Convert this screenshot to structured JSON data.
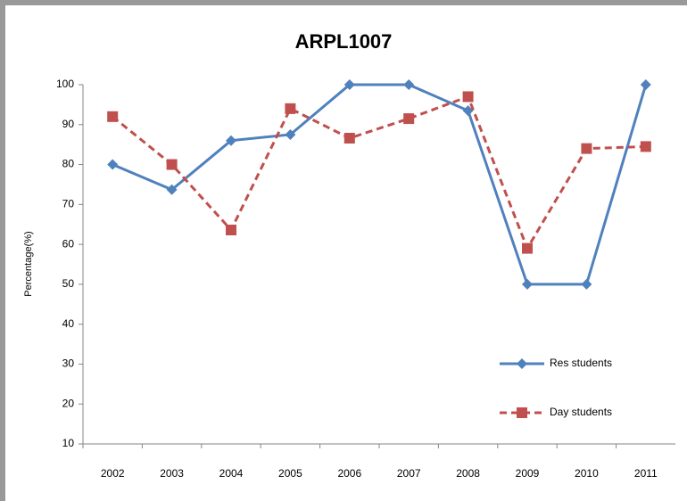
{
  "chart_data": {
    "type": "line",
    "title": "ARPL1007",
    "y_label": "Percentage(%)",
    "categories": [
      "2002",
      "2003",
      "2004",
      "2005",
      "2006",
      "2007",
      "2008",
      "2009",
      "2010",
      "2011"
    ],
    "series": [
      {
        "name": "Res students",
        "color": "#4f81bd",
        "marker": "diamond",
        "dashed": false,
        "values": [
          80,
          73.7,
          86,
          87.5,
          100,
          100,
          93.5,
          50,
          50,
          100
        ]
      },
      {
        "name": "Day students",
        "color": "#c0504d",
        "marker": "square",
        "dashed": true,
        "values": [
          92,
          80,
          63.6,
          94,
          86.6,
          91.5,
          97,
          59,
          84,
          84.5
        ]
      }
    ],
    "ylim": [
      10,
      100
    ],
    "yticks": [
      10,
      20,
      30,
      40,
      50,
      60,
      70,
      80,
      90,
      100
    ],
    "grid": false,
    "legend": "lower right"
  }
}
